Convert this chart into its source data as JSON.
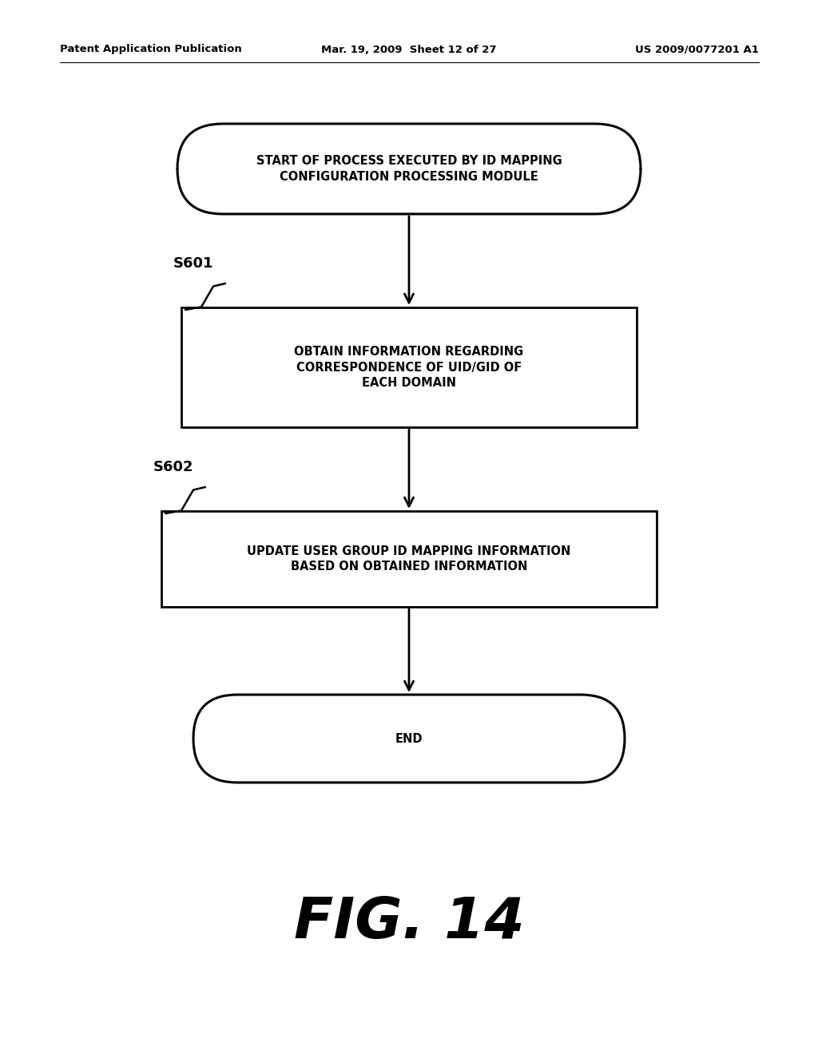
{
  "bg_color": "#ffffff",
  "header_left": "Patent Application Publication",
  "header_mid": "Mar. 19, 2009  Sheet 12 of 27",
  "header_right": "US 2009/0077201 A1",
  "fig_label": "FIG. 14",
  "start_text": "START OF PROCESS EXECUTED BY ID MAPPING\nCONFIGURATION PROCESSING MODULE",
  "box1_label": "S601",
  "box1_text": "OBTAIN INFORMATION REGARDING\nCORRESPONDENCE OF UID/GID OF\nEACH DOMAIN",
  "box2_label": "S602",
  "box2_text": "UPDATE USER GROUP ID MAPPING INFORMATION\nBASED ON OBTAINED INFORMATION",
  "end_text": "END",
  "text_color": "#000000",
  "shape_edge_color": "#000000",
  "shape_face_color": "#ffffff",
  "arrow_color": "#000000",
  "font_size_header": 9.5,
  "font_size_body": 10.5,
  "font_size_label": 13,
  "font_size_fig": 52
}
